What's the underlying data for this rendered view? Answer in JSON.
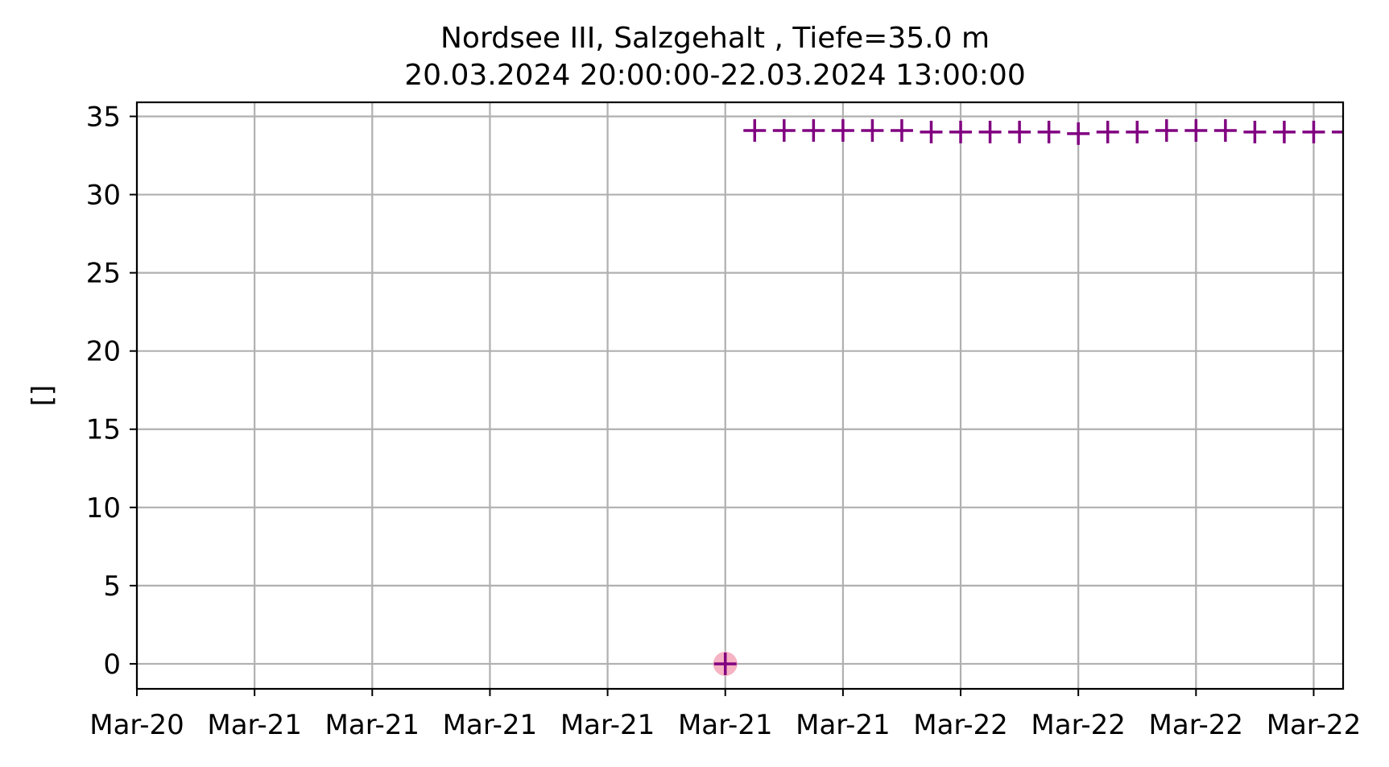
{
  "chart_data": {
    "type": "scatter",
    "title": "Nordsee III, Salzgehalt , Tiefe=35.0 m",
    "subtitle": "20.03.2024 20:00:00-22.03.2024 13:00:00",
    "xlabel": "",
    "ylabel": "[]",
    "x_tick_labels": [
      "Mar-20",
      "Mar-21",
      "Mar-21",
      "Mar-21",
      "Mar-21",
      "Mar-21",
      "Mar-21",
      "Mar-22",
      "Mar-22",
      "Mar-22",
      "Mar-22"
    ],
    "x_ticks_hours": [
      0,
      4,
      8,
      12,
      16,
      20,
      24,
      28,
      32,
      36,
      40
    ],
    "xlim_hours": [
      0,
      41
    ],
    "y_ticks": [
      0,
      5,
      10,
      15,
      20,
      25,
      30,
      35
    ],
    "ylim": [
      -1.6,
      35.9
    ],
    "grid": true,
    "marker_color": "#800080",
    "highlight_color": "#f4a6b8",
    "series": [
      {
        "marker": "plus",
        "points": [
          {
            "x": 20,
            "y": 0
          },
          {
            "x": 21,
            "y": 34.1
          },
          {
            "x": 22,
            "y": 34.1
          },
          {
            "x": 23,
            "y": 34.1
          },
          {
            "x": 24,
            "y": 34.1
          },
          {
            "x": 25,
            "y": 34.1
          },
          {
            "x": 26,
            "y": 34.1
          },
          {
            "x": 27,
            "y": 34.0
          },
          {
            "x": 28,
            "y": 34.0
          },
          {
            "x": 29,
            "y": 34.0
          },
          {
            "x": 30,
            "y": 34.0
          },
          {
            "x": 31,
            "y": 34.0
          },
          {
            "x": 32,
            "y": 33.9
          },
          {
            "x": 33,
            "y": 34.0
          },
          {
            "x": 34,
            "y": 34.0
          },
          {
            "x": 35,
            "y": 34.1
          },
          {
            "x": 36,
            "y": 34.1
          },
          {
            "x": 37,
            "y": 34.1
          },
          {
            "x": 38,
            "y": 34.0
          },
          {
            "x": 39,
            "y": 34.0
          },
          {
            "x": 40,
            "y": 34.0
          },
          {
            "x": 41,
            "y": 34.0
          }
        ]
      }
    ],
    "highlighted_points": [
      {
        "x": 20,
        "y": 0
      }
    ]
  }
}
